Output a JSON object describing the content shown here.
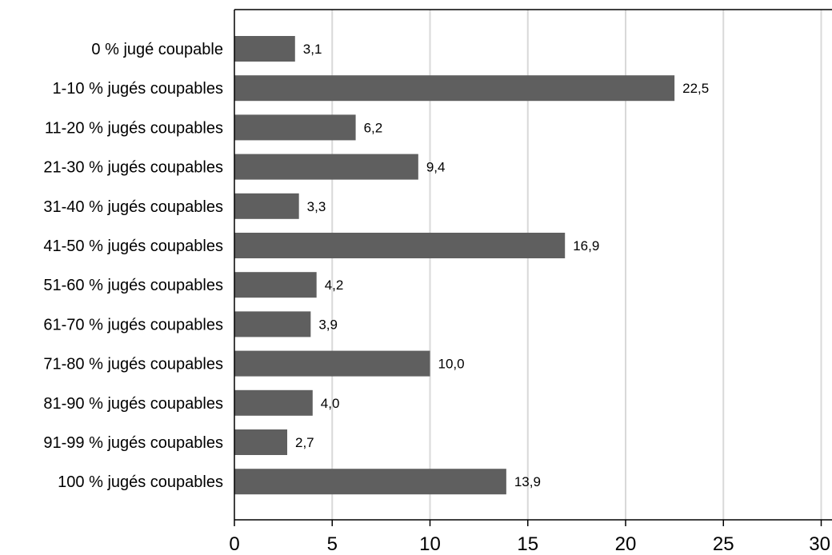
{
  "chart_data": {
    "type": "bar",
    "orientation": "horizontal",
    "title": "",
    "xlabel": "",
    "ylabel": "",
    "xlim": [
      0,
      30
    ],
    "xticks": [
      0,
      5,
      10,
      15,
      20,
      25,
      30
    ],
    "xtick_labels": [
      "0",
      "5",
      "10",
      "15",
      "20",
      "25",
      "30"
    ],
    "grid": "vertical",
    "legend": "none",
    "categories": [
      "0 % jugé coupable",
      "1-10 % jugés coupables",
      "11-20 % jugés coupables",
      "21-30 % jugés coupables",
      "31-40 % jugés coupables",
      "41-50 % jugés coupables",
      "51-60 % jugés coupables",
      "61-70 % jugés coupables",
      "71-80 % jugés coupables",
      "81-90 % jugés coupables",
      "91-99 % jugés coupables",
      "100 % jugés coupables"
    ],
    "values": [
      3.1,
      22.5,
      6.2,
      9.4,
      3.3,
      16.9,
      4.2,
      3.9,
      10.0,
      4.0,
      2.7,
      13.9
    ],
    "value_labels": [
      "3,1",
      "22,5",
      "6,2",
      "9,4",
      "3,3",
      "16,9",
      "4,2",
      "3,9",
      "10,0",
      "4,0",
      "2,7",
      "13,9"
    ],
    "colors": {
      "bar": "#5f5f5f",
      "grid": "#d9d9d9",
      "axis": "#000000"
    }
  }
}
